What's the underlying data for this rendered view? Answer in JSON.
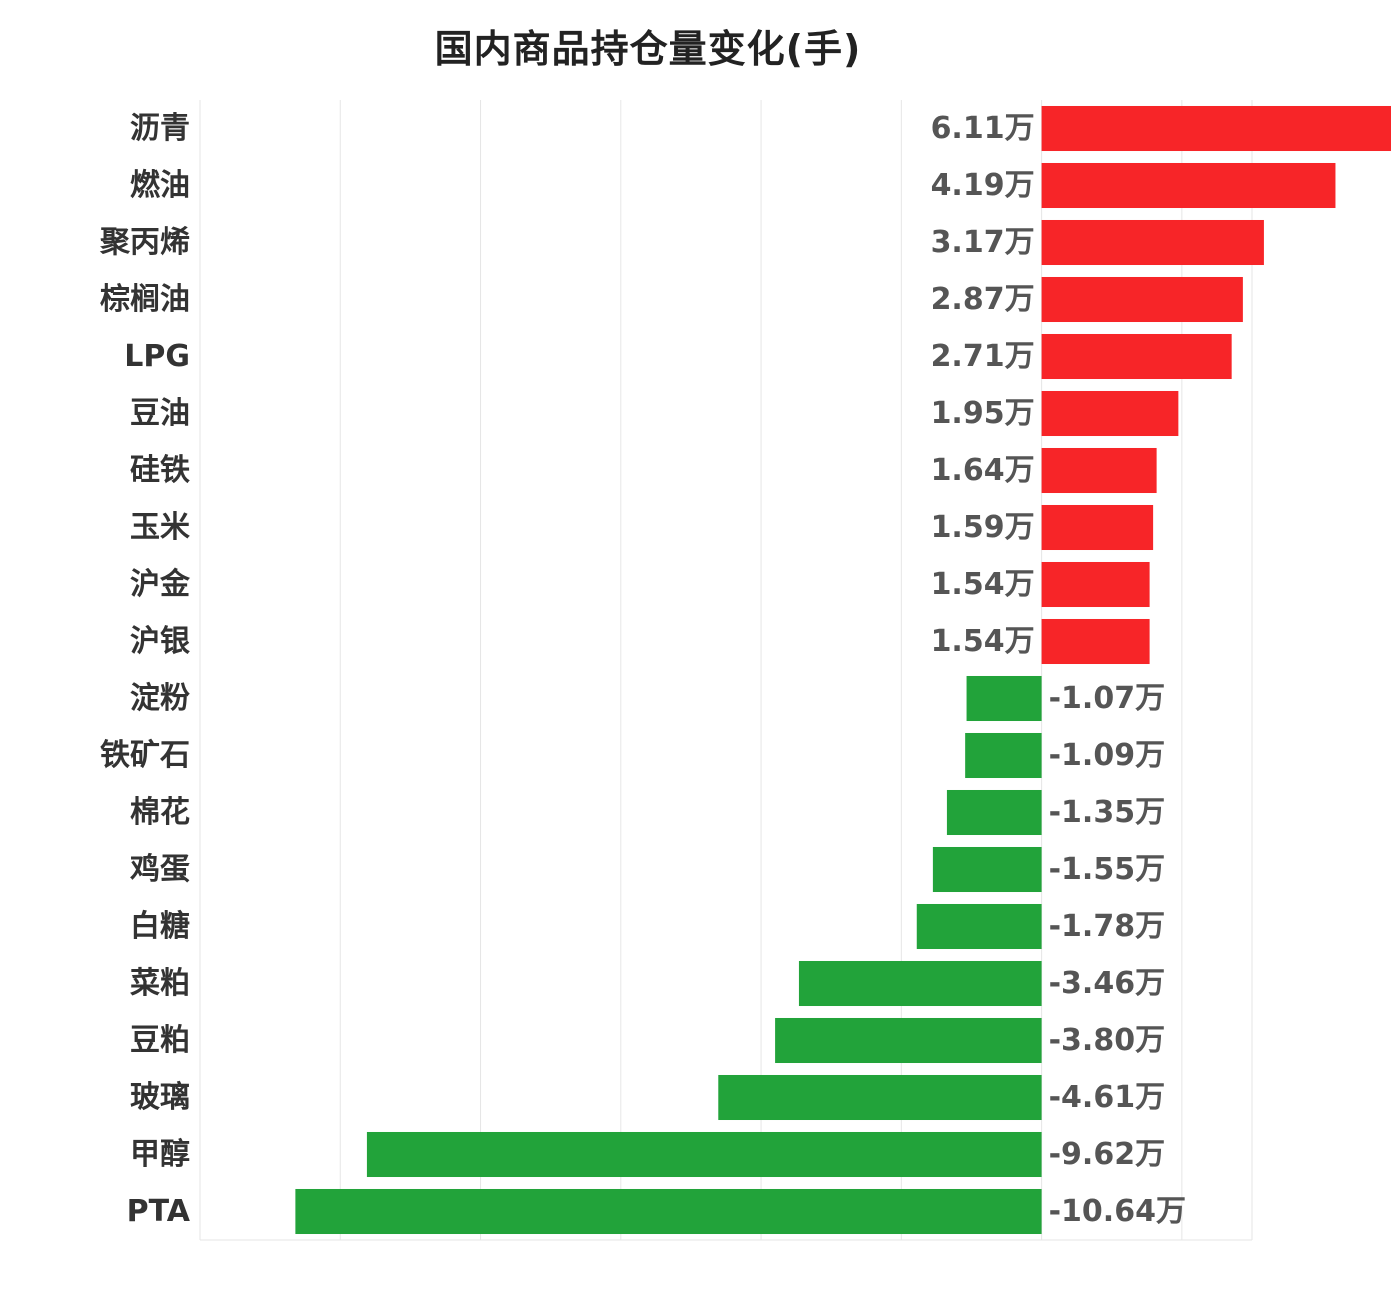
{
  "chart_data": {
    "type": "bar",
    "orientation": "horizontal",
    "title": "国内商品持仓量变化(手)",
    "xlabel": "",
    "ylabel": "",
    "grid": true,
    "xlim": [
      -12,
      3
    ],
    "categories": [
      "沥青",
      "燃油",
      "聚丙烯",
      "棕榈油",
      "LPG",
      "豆油",
      "硅铁",
      "玉米",
      "沪金",
      "沪银",
      "淀粉",
      "铁矿石",
      "棉花",
      "鸡蛋",
      "白糖",
      "菜粕",
      "豆粕",
      "玻璃",
      "甲醇",
      "PTA"
    ],
    "values": [
      6.11,
      4.19,
      3.17,
      2.87,
      2.71,
      1.95,
      1.64,
      1.59,
      1.54,
      1.54,
      -1.07,
      -1.09,
      -1.35,
      -1.55,
      -1.78,
      -3.46,
      -3.8,
      -4.61,
      -9.62,
      -10.64
    ],
    "value_labels": [
      "6.11万",
      "4.19万",
      "3.17万",
      "2.87万",
      "2.71万",
      "1.95万",
      "1.64万",
      "1.59万",
      "1.54万",
      "1.54万",
      "-1.07万",
      "-1.09万",
      "-1.35万",
      "-1.55万",
      "-1.78万",
      "-3.46万",
      "-3.80万",
      "-4.61万",
      "-9.62万",
      "-10.64万"
    ],
    "unit": "万",
    "colors": {
      "positive": "#f72528",
      "negative": "#22a33a",
      "grid": "#e6e6e6"
    }
  }
}
